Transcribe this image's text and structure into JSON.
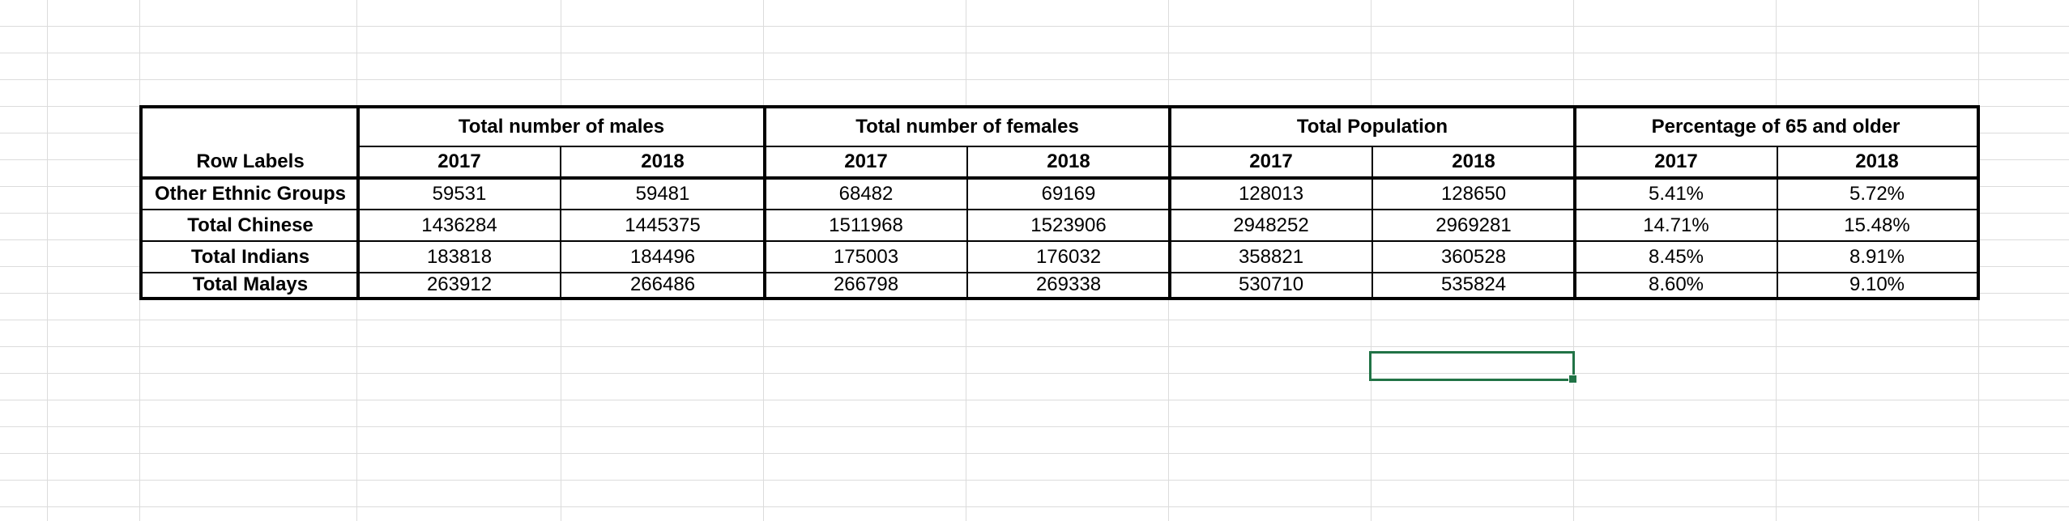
{
  "table": {
    "row_labels_header": "Row Labels",
    "groups": [
      {
        "label": "Total number of males",
        "years": [
          "2017",
          "2018"
        ]
      },
      {
        "label": "Total number of females",
        "years": [
          "2017",
          "2018"
        ]
      },
      {
        "label": "Total Population",
        "years": [
          "2017",
          "2018"
        ]
      },
      {
        "label": "Percentage of 65 and older",
        "years": [
          "2017",
          "2018"
        ]
      }
    ],
    "rows": [
      {
        "label": "Other Ethnic Groups",
        "values": [
          "59531",
          "59481",
          "68482",
          "69169",
          "128013",
          "128650",
          "5.41%",
          "5.72%"
        ]
      },
      {
        "label": "Total Chinese",
        "values": [
          "1436284",
          "1445375",
          "1511968",
          "1523906",
          "2948252",
          "2969281",
          "14.71%",
          "15.48%"
        ]
      },
      {
        "label": "Total Indians",
        "values": [
          "183818",
          "184496",
          "175003",
          "176032",
          "358821",
          "360528",
          "8.45%",
          "8.91%"
        ]
      },
      {
        "label": "Total Malays",
        "values": [
          "263912",
          "266486",
          "266798",
          "269338",
          "530710",
          "535824",
          "8.60%",
          "9.10%"
        ]
      }
    ]
  },
  "colors": {
    "gridline": "#dcdcdc",
    "border": "#000000",
    "selection": "#217346"
  }
}
